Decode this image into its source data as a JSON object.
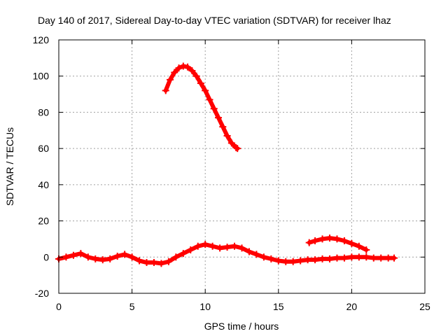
{
  "chart_data": {
    "type": "scatter",
    "title": "Day 140 of 2017, Sidereal Day-to-day VTEC variation (SDTVAR) for receiver lhaz",
    "xlabel": "GPS time / hours",
    "ylabel": "SDTVAR / TECUs",
    "xlim": [
      0,
      25
    ],
    "ylim": [
      -20,
      120
    ],
    "x_ticks": [
      0,
      5,
      10,
      15,
      20,
      25
    ],
    "y_ticks": [
      -20,
      0,
      20,
      40,
      60,
      80,
      100,
      120
    ],
    "grid": true,
    "marker": "plus",
    "series_color": "#ff0000",
    "series": [
      {
        "name": "baseline",
        "x": [
          0.0,
          0.5,
          1.0,
          1.5,
          2.0,
          2.5,
          3.0,
          3.5,
          4.0,
          4.5,
          5.0,
          5.5,
          6.0,
          6.5,
          7.0,
          7.5,
          8.0,
          8.5,
          9.0,
          9.5,
          10.0,
          10.5,
          11.0,
          11.5,
          12.0,
          12.5,
          13.0,
          13.5,
          14.0,
          14.5,
          15.0,
          15.5,
          16.0,
          16.5,
          17.0,
          17.5,
          18.0,
          18.5,
          19.0,
          19.5,
          20.0,
          20.5,
          21.0,
          21.5,
          22.0,
          22.5,
          22.9
        ],
        "y": [
          -1,
          0,
          1,
          2,
          0,
          -1,
          -1.5,
          -1,
          0.5,
          1.5,
          0,
          -2,
          -3,
          -3,
          -3.5,
          -2.5,
          0,
          2,
          4,
          6,
          7,
          6,
          5,
          5.5,
          6,
          5,
          3,
          1.5,
          0,
          -1,
          -2,
          -2.5,
          -2.5,
          -2,
          -1.5,
          -1.5,
          -1,
          -1,
          -0.5,
          -0.5,
          0,
          0,
          0,
          -0.5,
          -0.5,
          -0.5,
          -0.5
        ]
      },
      {
        "name": "arc-high",
        "x": [
          7.3,
          7.6,
          7.9,
          8.2,
          8.5,
          8.8,
          9.1,
          9.4,
          9.7,
          10.0,
          10.3,
          10.6,
          10.9,
          11.2,
          11.5,
          11.8,
          12.1,
          12.2
        ],
        "y": [
          92,
          98,
          102,
          104.5,
          105.5,
          105,
          103,
          100,
          96,
          92,
          87,
          82,
          77,
          72,
          67,
          63,
          60.5,
          60
        ]
      },
      {
        "name": "arc-low",
        "x": [
          17.1,
          17.5,
          18.0,
          18.5,
          19.0,
          19.5,
          20.0,
          20.5,
          21.0
        ],
        "y": [
          8,
          9,
          10,
          10.5,
          10,
          9,
          7.5,
          6,
          4
        ]
      }
    ]
  }
}
